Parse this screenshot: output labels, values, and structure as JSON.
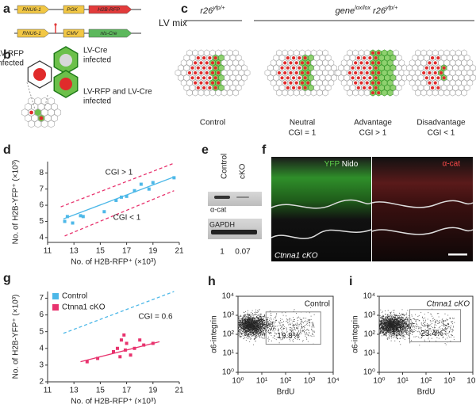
{
  "a": {
    "label": "a",
    "title": "LV mix",
    "constructs": [
      [
        "RNU6-1",
        "PGK",
        "H2B-RFP"
      ],
      [
        "RNU6-1",
        "CMV",
        "nls-Cre"
      ]
    ]
  },
  "b": {
    "label": "b",
    "legend": [
      [
        "LV-RFP",
        "infected"
      ],
      [
        "LV-Cre",
        "infected"
      ],
      [
        "LV-RFP and LV-Cre",
        "infected"
      ]
    ]
  },
  "c": {
    "label": "c",
    "groups": [
      [
        {
          "t": "r26"
        },
        {
          "t": "yfp/+",
          "sup": true
        }
      ],
      [
        {
          "t": "gene"
        },
        {
          "t": "lox/lox",
          "sup": true
        },
        {
          "t": " r26"
        },
        {
          "t": "yfp/+",
          "sup": true
        }
      ]
    ],
    "conditions": [
      [
        "Control"
      ],
      [
        "Neutral",
        "CGI = 1"
      ],
      [
        "Advantage",
        "CGI > 1"
      ],
      [
        "Disadvantage",
        "CGI < 1"
      ]
    ]
  },
  "e": {
    "label": "e",
    "columns": [
      "Control",
      "cKO"
    ],
    "bands": [
      "α-cat",
      "GAPDH"
    ],
    "quantification": [
      1,
      0.07
    ]
  },
  "f": {
    "label": "f",
    "stains": [
      "YFP",
      "Nido",
      "α-cat"
    ],
    "genotype": "Ctnna1 cKO"
  },
  "chart_data": [
    {
      "type": "scatter",
      "panel": "d",
      "xlabel": "No. of H2B-RFP⁺ (×10³)",
      "ylabel": "No. of H2B-YFP⁺ (×10³)",
      "xlim": [
        11,
        21
      ],
      "xticks": [
        11,
        13,
        15,
        17,
        19,
        21
      ],
      "ylim": [
        3.7,
        8.7
      ],
      "yticks": [
        4,
        5,
        6,
        7,
        8
      ],
      "color": "#4db8e8",
      "x": [
        12.3,
        12.5,
        12.9,
        13.5,
        13.7,
        15.3,
        16.2,
        16.6,
        17.0,
        17.6,
        18.1,
        18.7,
        19.0,
        20.6
      ],
      "values": [
        5.0,
        5.3,
        4.9,
        5.35,
        5.3,
        5.6,
        6.3,
        6.5,
        6.55,
        6.9,
        7.3,
        7.0,
        7.4,
        7.7
      ],
      "reference_lines": [
        {
          "x": [
            12.2,
            20.6
          ],
          "y": [
            5.15,
            7.75
          ],
          "color": "#4db8e8",
          "dash": false
        },
        {
          "x": [
            12.0,
            20.6
          ],
          "y": [
            5.9,
            8.6
          ],
          "color": "#e8336e",
          "dash": true
        },
        {
          "x": [
            12.3,
            20.6
          ],
          "y": [
            4.1,
            6.9
          ],
          "color": "#e8336e",
          "dash": true
        }
      ],
      "annotations": [
        "CGI > 1",
        "CGI < 1"
      ]
    },
    {
      "type": "scatter",
      "panel": "g",
      "xlabel": "No. of H2B-RFP⁺ (×10³)",
      "ylabel": "No. of H2B-YFP⁺ (×10³)",
      "xlim": [
        11,
        21
      ],
      "xticks": [
        11,
        13,
        15,
        17,
        19,
        21
      ],
      "ylim": [
        2,
        7.4
      ],
      "yticks": [
        2,
        3,
        4,
        5,
        6,
        7
      ],
      "series": [
        {
          "name": "Control",
          "color": "#4db8e8",
          "style": "dashed-line",
          "x": [
            12.2,
            20.6
          ],
          "values": [
            4.9,
            7.4
          ]
        },
        {
          "name": "Ctnna1 cKO",
          "color": "#e8336e",
          "style": "points",
          "x": [
            14.0,
            14.8,
            16.0,
            16.3,
            16.5,
            16.6,
            16.8,
            16.9,
            17.0,
            17.3,
            17.6,
            18.0,
            18.3,
            19.0
          ],
          "values": [
            3.2,
            3.4,
            3.8,
            4.0,
            3.5,
            4.5,
            4.8,
            3.9,
            4.3,
            3.6,
            4.0,
            4.5,
            4.2,
            4.3
          ]
        }
      ],
      "reference_lines": [
        {
          "x": [
            13.5,
            19.5
          ],
          "y": [
            3.2,
            4.4
          ],
          "color": "#e8336e",
          "dash": false
        }
      ],
      "annotations": [
        "CGI = 0.6"
      ]
    },
    {
      "type": "density",
      "panel": "h",
      "title": "Control",
      "xlabel": "BrdU",
      "ylabel": "α6-integrin",
      "log": true,
      "xlim": [
        1,
        10000
      ],
      "ylim": [
        1,
        10000
      ],
      "xticks": [
        {
          "value": 1,
          "label": "10⁰"
        },
        {
          "value": 10,
          "label": "10¹"
        },
        {
          "value": 100,
          "label": "10²"
        },
        {
          "value": 1000,
          "label": "10³"
        },
        {
          "value": 10000,
          "label": "10⁴"
        }
      ],
      "yticks": [
        {
          "value": 1,
          "label": "10⁰"
        },
        {
          "value": 10,
          "label": "10¹"
        },
        {
          "value": 100,
          "label": "10²"
        },
        {
          "value": 1000,
          "label": "10³"
        },
        {
          "value": 10000,
          "label": "10⁴"
        }
      ],
      "gate": {
        "x": [
          15,
          3000
        ],
        "y": [
          30,
          1500
        ],
        "value": 19.8,
        "value_label": "19.8%"
      }
    },
    {
      "type": "density",
      "panel": "i",
      "title": "Ctnna1 cKO",
      "xlabel": "BrdU",
      "ylabel": "α6-integrin",
      "log": true,
      "xlim": [
        1,
        10000
      ],
      "ylim": [
        1,
        10000
      ],
      "xticks": [
        {
          "value": 1,
          "label": "10⁰"
        },
        {
          "value": 10,
          "label": "10¹"
        },
        {
          "value": 100,
          "label": "10²"
        },
        {
          "value": 1000,
          "label": "10³"
        },
        {
          "value": 10000,
          "label": "10⁴"
        }
      ],
      "yticks": [
        {
          "value": 1,
          "label": "10⁰"
        },
        {
          "value": 10,
          "label": "10¹"
        },
        {
          "value": 100,
          "label": "10²"
        },
        {
          "value": 1000,
          "label": "10³"
        },
        {
          "value": 10000,
          "label": "10⁴"
        }
      ],
      "gate": {
        "x": [
          20,
          3000
        ],
        "y": [
          40,
          2000
        ],
        "value": 23.4,
        "value_label": "23.4%"
      }
    }
  ]
}
